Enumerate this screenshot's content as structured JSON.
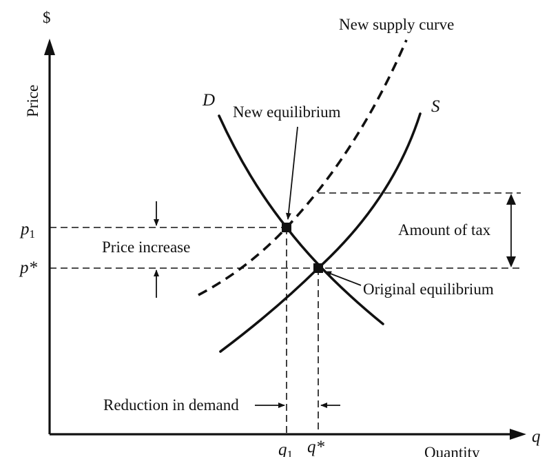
{
  "axes": {
    "y_unit": "$",
    "y_label": "Price",
    "x_unit": "q",
    "x_label": "Quantity"
  },
  "curves": {
    "demand": "D",
    "supply": "S",
    "new_supply": "New supply curve"
  },
  "annotations": {
    "new_equilibrium": "New equilibrium",
    "original_equilibrium": "Original equilibrium",
    "price_increase": "Price increase",
    "amount_of_tax": "Amount of tax",
    "reduction_in_demand": "Reduction in demand"
  },
  "prices": {
    "p1": "p",
    "p1_sub": "1",
    "pstar": "p*"
  },
  "quantities": {
    "q1": "q",
    "q1_sub": "1",
    "qstar": "q*"
  }
}
